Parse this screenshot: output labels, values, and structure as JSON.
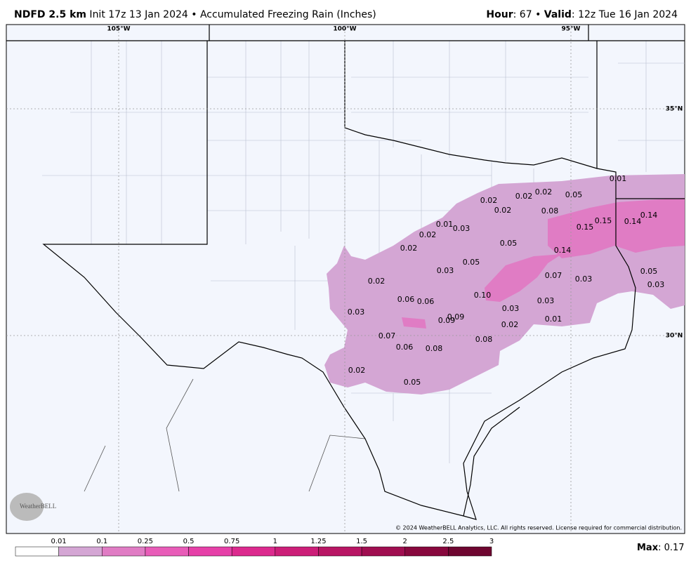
{
  "header": {
    "model": "NDFD 2.5 km",
    "init": " Init 17z 13 Jan 2024 • Accumulated Freezing Rain (Inches)",
    "hour_label": "Hour",
    "hour": ": 67 • ",
    "valid_label": "Valid",
    "valid": ": 12z Tue 16 Jan 2024"
  },
  "graticule": {
    "lon": [
      "105°W",
      "100°W",
      "95°W"
    ],
    "lat": [
      "35°N",
      "30°N"
    ]
  },
  "point_labels": [
    "0.01",
    "0.02",
    "0.02",
    "0.05",
    "0.02",
    "0.02",
    "0.08",
    "0.15",
    "0.14",
    "0.14",
    "0.15",
    "0.01",
    "0.03",
    "0.02",
    "0.05",
    "0.02",
    "0.14",
    "0.05",
    "0.03",
    "0.05",
    "0.07",
    "0.03",
    "0.03",
    "0.02",
    "0.10",
    "0.06",
    "0.06",
    "0.03",
    "0.03",
    "0.03",
    "0.09",
    "0.09",
    "0.01",
    "0.02",
    "0.07",
    "0.08",
    "0.06",
    "0.08",
    "0.02",
    "0.05"
  ],
  "copyright": "© 2024 WeatherBELL Analytics, LLC. All rights reserved. License required for commercial distribution.",
  "logo": "WeatherBELL",
  "colorbar": {
    "labels": [
      0.01,
      0.1,
      0.25,
      0.5,
      0.75,
      1,
      1.25,
      1.5,
      2,
      2.5,
      3
    ],
    "colors": [
      "#ffffff",
      "#d4a6d4",
      "#e07cc4",
      "#e85cb8",
      "#e640a8",
      "#dc2a8e",
      "#cc1e78",
      "#b81664",
      "#a00e50",
      "#88083e",
      "#6e0630"
    ]
  },
  "max": {
    "label": "Max",
    "value": ": 0.17"
  }
}
